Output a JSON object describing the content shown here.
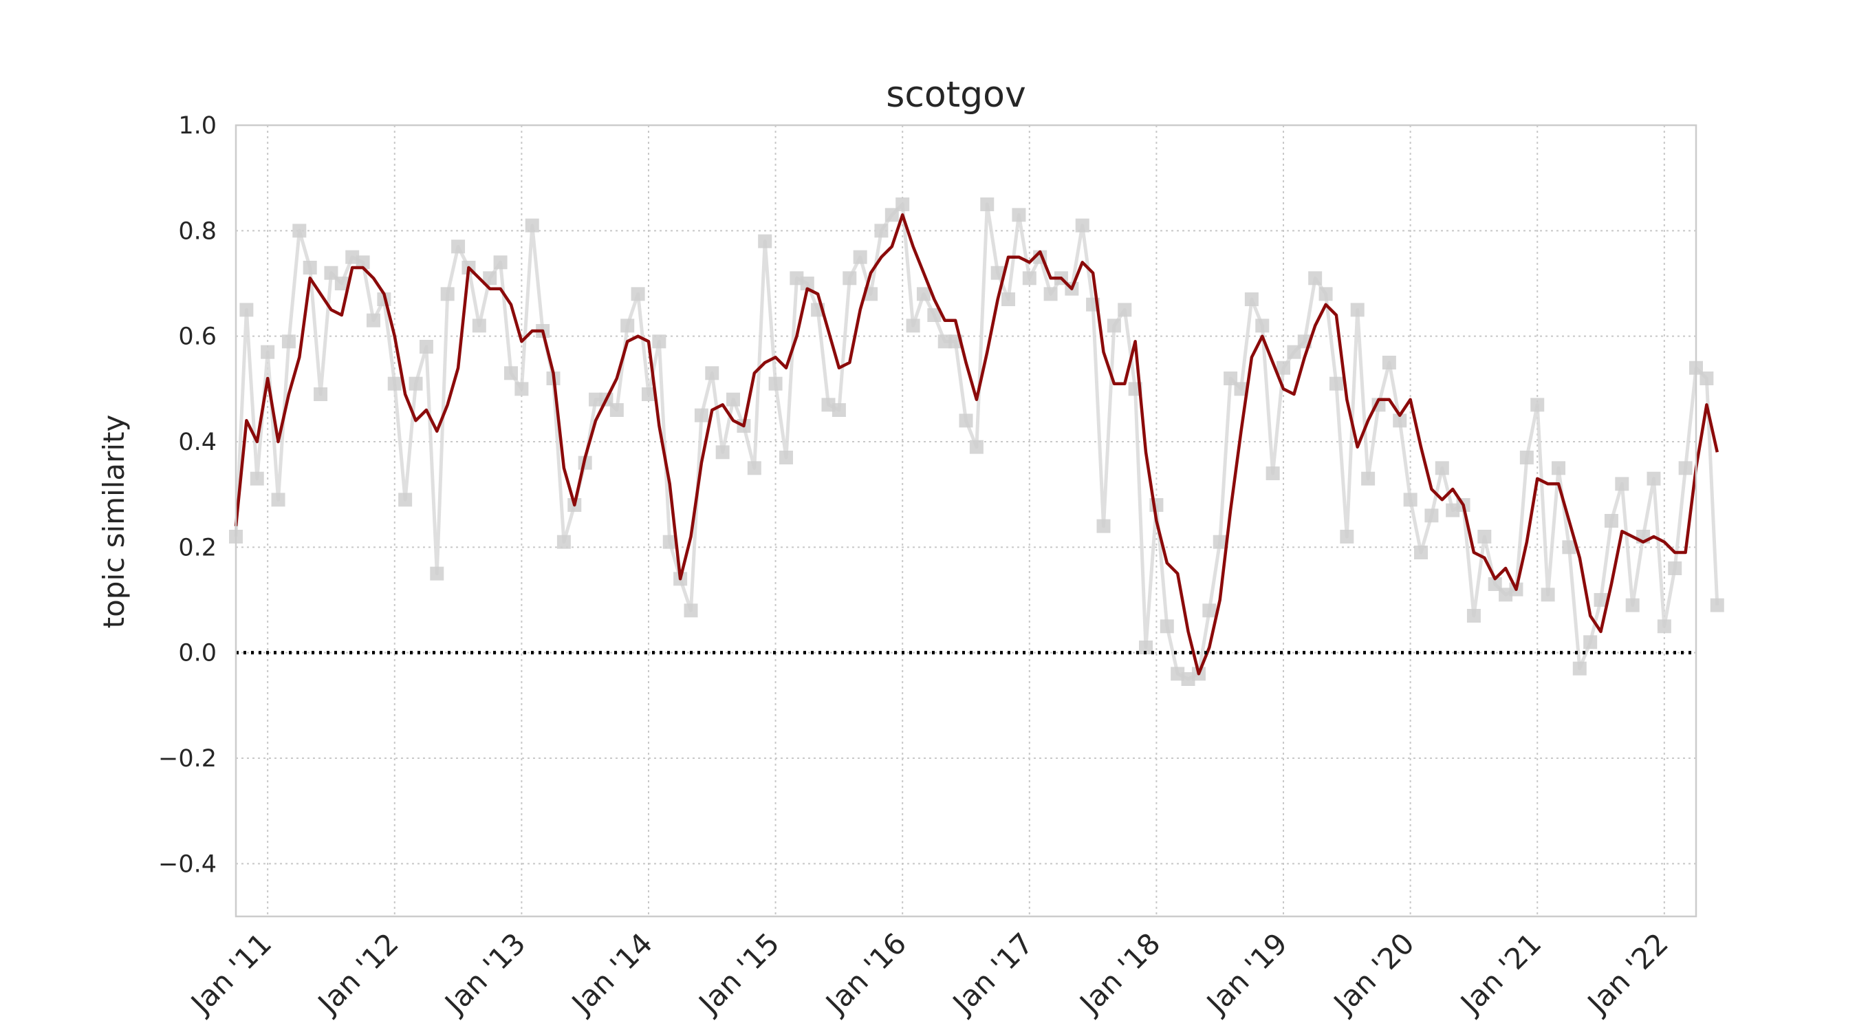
{
  "chart_data": {
    "type": "line",
    "title": "scotgov",
    "xlabel": "",
    "ylabel": "topic similarity",
    "ylim": [
      -0.5,
      1.0
    ],
    "yticks": [
      -0.4,
      -0.2,
      0.0,
      0.2,
      0.4,
      0.6,
      0.8,
      1.0
    ],
    "ytick_labels": [
      "−0.4",
      "−0.2",
      "0.0",
      "0.2",
      "0.4",
      "0.6",
      "0.8",
      "1.0"
    ],
    "xticks": [
      "2011-01",
      "2012-01",
      "2013-01",
      "2014-01",
      "2015-01",
      "2016-01",
      "2017-01",
      "2018-01",
      "2019-01",
      "2020-01",
      "2021-01",
      "2022-01"
    ],
    "xtick_labels": [
      "Jan '11",
      "Jan '12",
      "Jan '13",
      "Jan '14",
      "Jan '15",
      "Jan '16",
      "Jan '17",
      "Jan '18",
      "Jan '19",
      "Jan '20",
      "Jan '21",
      "Jan '22"
    ],
    "xlim": [
      "2010-10",
      "2022-04"
    ],
    "grid": true,
    "reference_line": 0.0,
    "series": [
      {
        "role": "monthly",
        "color": "#d9d9d9",
        "marker": "square",
        "values": [
          0.22,
          0.65,
          0.33,
          0.57,
          0.29,
          0.59,
          0.8,
          0.73,
          0.49,
          0.72,
          0.7,
          0.75,
          0.74,
          0.63,
          0.67,
          0.51,
          0.29,
          0.51,
          0.58,
          0.15,
          0.68,
          0.77,
          0.73,
          0.62,
          0.71,
          0.74,
          0.53,
          0.5,
          0.81,
          0.61,
          0.52,
          0.21,
          0.28,
          0.36,
          0.48,
          0.48,
          0.46,
          0.62,
          0.68,
          0.49,
          0.59,
          0.21,
          0.14,
          0.08,
          0.45,
          0.53,
          0.38,
          0.48,
          0.43,
          0.35,
          0.78,
          0.51,
          0.37,
          0.71,
          0.7,
          0.65,
          0.47,
          0.46,
          0.71,
          0.75,
          0.68,
          0.8,
          0.83,
          0.85,
          0.62,
          0.68,
          0.64,
          0.59,
          0.59,
          0.44,
          0.39,
          0.85,
          0.72,
          0.67,
          0.83,
          0.71,
          0.75,
          0.68,
          0.71,
          0.69,
          0.81,
          0.66,
          0.24,
          0.62,
          0.65,
          0.5,
          0.01,
          0.28,
          0.05,
          -0.04,
          -0.05,
          -0.04,
          0.08,
          0.21,
          0.52,
          0.5,
          0.67,
          0.62,
          0.34,
          0.54,
          0.57,
          0.59,
          0.71,
          0.68,
          0.51,
          0.22,
          0.65,
          0.33,
          0.47,
          0.55,
          0.44,
          0.29,
          0.19,
          0.26,
          0.35,
          0.27,
          0.28,
          0.07,
          0.22,
          0.13,
          0.11,
          0.12,
          0.37,
          0.47,
          0.11,
          0.35,
          0.2,
          -0.03,
          0.02,
          0.1,
          0.25,
          0.32,
          0.09,
          0.22,
          0.33,
          0.05,
          0.16,
          0.35,
          0.54,
          0.52,
          0.09
        ]
      },
      {
        "role": "smoothed",
        "color": "#8b0a0a",
        "marker": "none",
        "values": [
          0.24,
          0.44,
          0.4,
          0.52,
          0.4,
          0.49,
          0.56,
          0.71,
          0.68,
          0.65,
          0.64,
          0.73,
          0.73,
          0.71,
          0.68,
          0.6,
          0.49,
          0.44,
          0.46,
          0.42,
          0.47,
          0.54,
          0.73,
          0.71,
          0.69,
          0.69,
          0.66,
          0.59,
          0.61,
          0.61,
          0.53,
          0.35,
          0.28,
          0.37,
          0.44,
          0.48,
          0.52,
          0.59,
          0.6,
          0.59,
          0.43,
          0.32,
          0.14,
          0.22,
          0.36,
          0.46,
          0.47,
          0.44,
          0.43,
          0.53,
          0.55,
          0.56,
          0.54,
          0.6,
          0.69,
          0.68,
          0.61,
          0.54,
          0.55,
          0.65,
          0.72,
          0.75,
          0.77,
          0.83,
          0.77,
          0.72,
          0.67,
          0.63,
          0.63,
          0.55,
          0.48,
          0.57,
          0.67,
          0.75,
          0.75,
          0.74,
          0.76,
          0.71,
          0.71,
          0.69,
          0.74,
          0.72,
          0.57,
          0.51,
          0.51,
          0.59,
          0.38,
          0.25,
          0.17,
          0.15,
          0.04,
          -0.04,
          0.01,
          0.1,
          0.27,
          0.42,
          0.56,
          0.6,
          0.55,
          0.5,
          0.49,
          0.56,
          0.62,
          0.66,
          0.64,
          0.48,
          0.39,
          0.44,
          0.48,
          0.48,
          0.45,
          0.48,
          0.39,
          0.31,
          0.29,
          0.31,
          0.28,
          0.19,
          0.18,
          0.14,
          0.16,
          0.12,
          0.21,
          0.33,
          0.32,
          0.32,
          0.25,
          0.18,
          0.07,
          0.04,
          0.13,
          0.23,
          0.22,
          0.21,
          0.22,
          0.21,
          0.19,
          0.19,
          0.35,
          0.47,
          0.38
        ]
      }
    ]
  }
}
